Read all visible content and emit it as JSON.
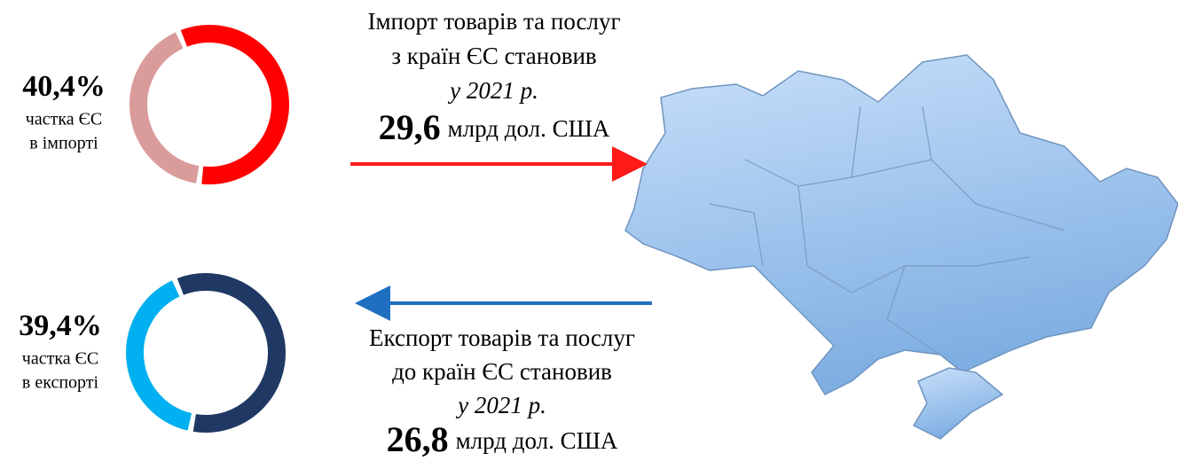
{
  "chart_data": [
    {
      "type": "pie",
      "values": [
        40.4
      ],
      "value_labels": [
        "40,4%"
      ],
      "label_lines": [
        "частка ЄС",
        "в імпорті"
      ],
      "color": "#da9b9b",
      "rest_color": "#ff0000"
    },
    {
      "type": "pie",
      "values": [
        39.4
      ],
      "value_labels": [
        "39,4%"
      ],
      "label_lines": [
        "частка ЄС",
        "в експорті"
      ],
      "color": "#00b0f0",
      "rest_color": "#1f3864"
    }
  ],
  "import": {
    "lines": [
      "Імпорт товарів та послуг",
      "з країн ЄС становив"
    ],
    "year": "у 2021 р.",
    "amount": "29,6",
    "unit": "млрд дол. США",
    "arrow_color": "#ff1a1a"
  },
  "export": {
    "lines": [
      "Експорт товарів та послуг",
      "до країн ЄС становив"
    ],
    "year": "у 2021 р.",
    "amount": "26,8",
    "unit": "млрд дол. США",
    "arrow_color": "#1f6fc0"
  }
}
